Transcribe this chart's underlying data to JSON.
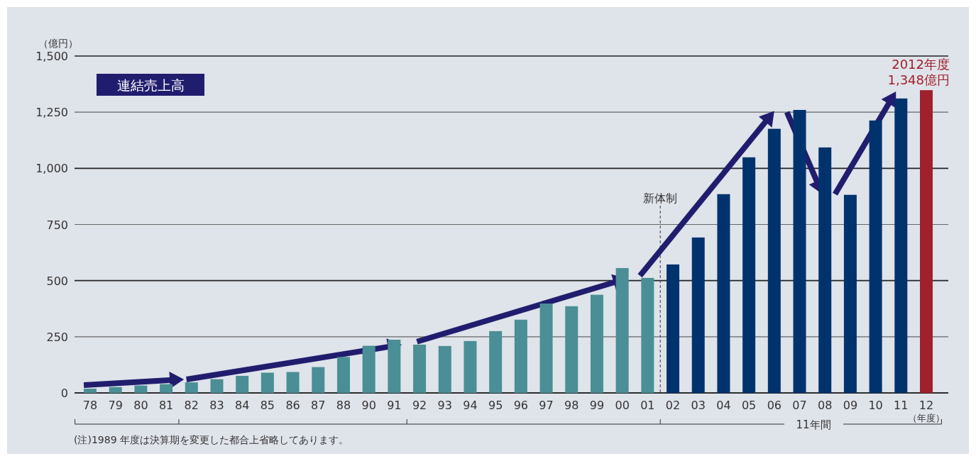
{
  "chart_data": {
    "type": "bar",
    "title": "連結売上高",
    "ylabel": "（億円）",
    "xlabel": "（年度）",
    "categories": [
      "78",
      "79",
      "80",
      "81",
      "82",
      "83",
      "84",
      "85",
      "86",
      "87",
      "88",
      "90",
      "91",
      "92",
      "93",
      "94",
      "95",
      "96",
      "97",
      "98",
      "99",
      "00",
      "01",
      "02",
      "03",
      "04",
      "05",
      "06",
      "07",
      "08",
      "09",
      "10",
      "11",
      "12"
    ],
    "values": [
      19,
      26,
      33,
      39,
      47,
      61,
      76,
      90,
      93,
      115,
      160,
      210,
      237,
      215,
      209,
      231,
      275,
      326,
      398,
      386,
      437,
      556,
      512,
      572,
      692,
      885,
      1049,
      1176,
      1260,
      1093,
      882,
      1213,
      1311,
      1348
    ],
    "colors": [
      "#4a8f95",
      "#4a8f95",
      "#4a8f95",
      "#4a8f95",
      "#4a8f95",
      "#4a8f95",
      "#4a8f95",
      "#4a8f95",
      "#4a8f95",
      "#4a8f95",
      "#4a8f95",
      "#4a8f95",
      "#4a8f95",
      "#4a8f95",
      "#4a8f95",
      "#4a8f95",
      "#4a8f95",
      "#4a8f95",
      "#4a8f95",
      "#4a8f95",
      "#4a8f95",
      "#4a8f95",
      "#4a8f95",
      "#00336e",
      "#00336e",
      "#00336e",
      "#00336e",
      "#00336e",
      "#00336e",
      "#00336e",
      "#00336e",
      "#00336e",
      "#00336e",
      "#a0202c"
    ],
    "value_labels": [
      null,
      null,
      null,
      null,
      null,
      null,
      null,
      null,
      null,
      null,
      null,
      null,
      null,
      null,
      null,
      null,
      null,
      null,
      null,
      null,
      null,
      null,
      null,
      null,
      null,
      null,
      null,
      null,
      null,
      null,
      null,
      null,
      null,
      "2012年度\n1,348億円"
    ],
    "ylim": [
      0,
      1500
    ],
    "yticks": [
      0,
      250,
      500,
      750,
      {
        "value": 1000,
        "label": "1,000"
      },
      {
        "value": 1250,
        "label": "1,250"
      },
      {
        "value": 1500,
        "label": "1,500"
      }
    ],
    "grid": "y",
    "ref_lines": [
      {
        "axis": "x",
        "value": "02",
        "label": "新体制",
        "line_style": "dashed",
        "color": "#333333"
      }
    ],
    "annotations": [
      "11年間",
      "(注)1989 年度は決算期を変更した都合上省略してあります。"
    ]
  }
}
